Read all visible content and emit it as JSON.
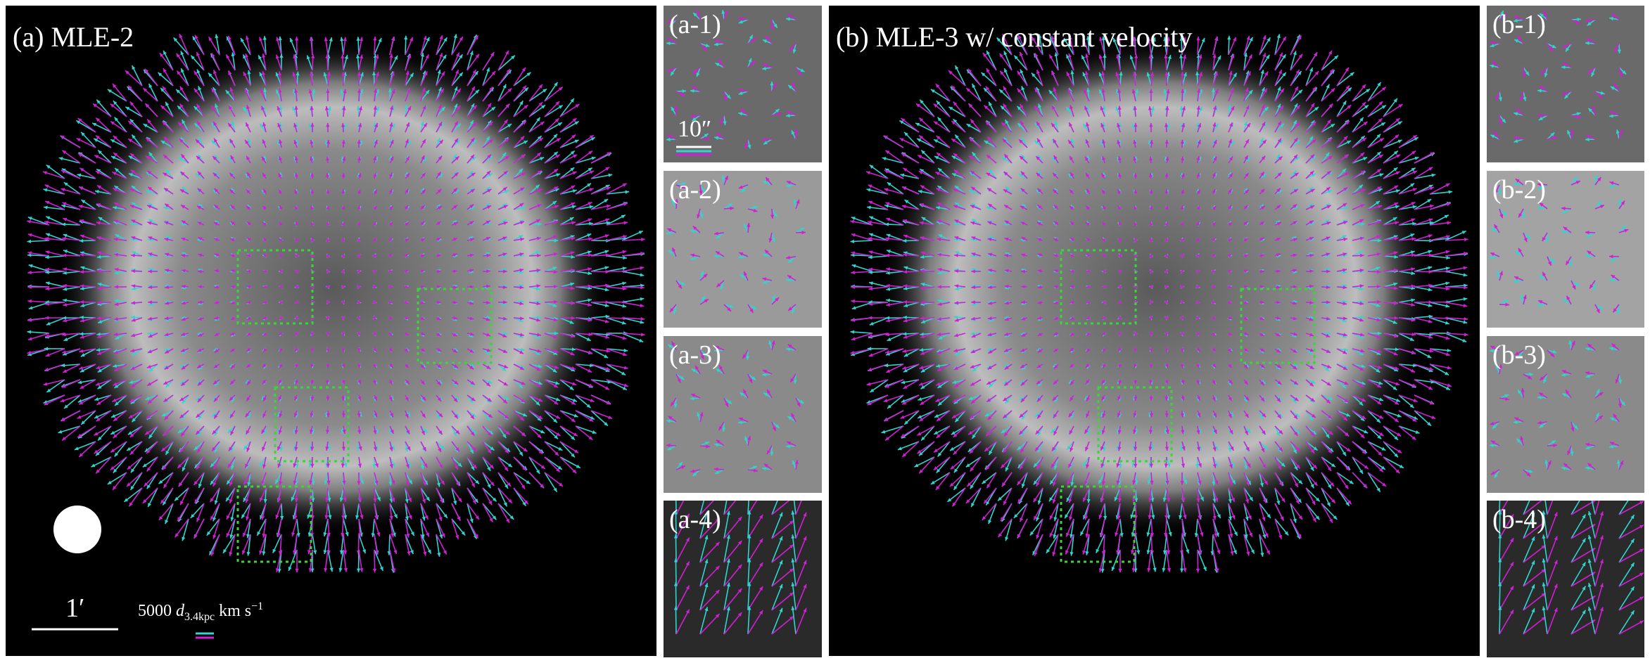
{
  "panels": {
    "a": {
      "label": "(a)  MLE-2"
    },
    "b": {
      "label": "(b)  MLE-3 w/ constant velocity"
    }
  },
  "subpanels": {
    "a1": "(a-1)",
    "a2": "(a-2)",
    "a3": "(a-3)",
    "a4": "(a-4)",
    "b1": "(b-1)",
    "b2": "(b-2)",
    "b3": "(b-3)",
    "b4": "(b-4)"
  },
  "scale": {
    "arcmin": "1′",
    "arcsec": "10″",
    "velocity_prefix": "5000 ",
    "velocity_var": "d",
    "velocity_sub": "3.4kpc",
    "velocity_unit": " km s",
    "velocity_sup": "−1"
  },
  "colors": {
    "cyan": "#2fd6d0",
    "magenta": "#d21fd6",
    "box": "#39d639"
  }
}
